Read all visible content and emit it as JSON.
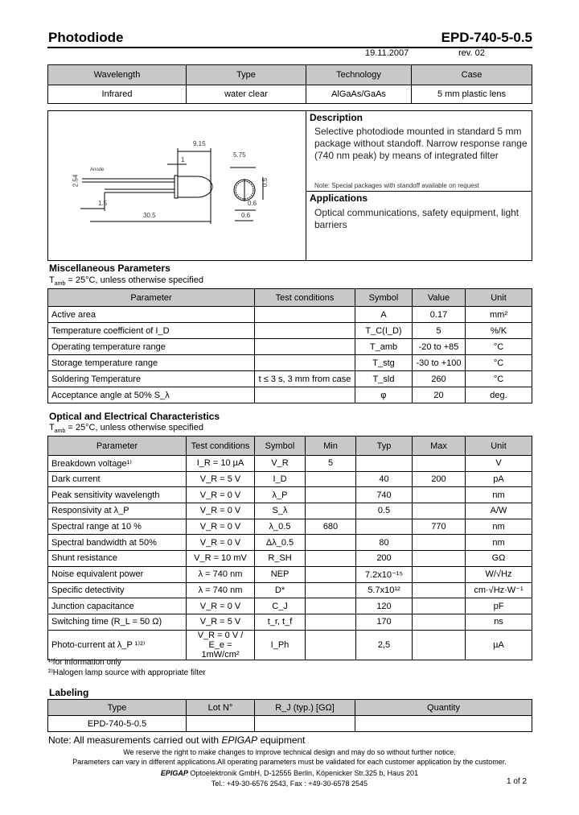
{
  "header": {
    "title": "Photodiode",
    "part": "EPD-740-5-0.5",
    "date": "19.11.2007",
    "rev": "rev. 02"
  },
  "summary": {
    "headers": [
      "Wavelength",
      "Type",
      "Technology",
      "Case"
    ],
    "values": [
      "Infrared",
      "water clear",
      "AlGaAs/GaAs",
      "5 mm plastic lens"
    ]
  },
  "drawing": {
    "labels": [
      "9.15",
      "1",
      "Anode",
      "5.75",
      "2.54",
      "0.5",
      "0.6",
      "0.6",
      "1.5",
      "30.5"
    ]
  },
  "description": {
    "heading": "Description",
    "text": "Selective photodiode mounted in standard 5 mm package without standoff. Narrow response range (740 nm peak) by means of integrated filter",
    "note": "Note: Special packages with standoff available on request"
  },
  "applications": {
    "heading": "Applications",
    "text": "Optical communications, safety equipment, light barriers"
  },
  "misc": {
    "heading": "Miscellaneous Parameters",
    "subtitle": "T_amb = 25°C, unless otherwise specified",
    "headers": [
      "Parameter",
      "Test conditions",
      "Symbol",
      "Value",
      "Unit"
    ],
    "rows": [
      [
        "Active area",
        "",
        "A",
        "0.17",
        "mm²"
      ],
      [
        "Temperature coefficient of I_D",
        "",
        "T_C(I_D)",
        "5",
        "%/K"
      ],
      [
        "Operating temperature range",
        "",
        "T_amb",
        "-20 to +85",
        "°C"
      ],
      [
        "Storage temperature range",
        "",
        "T_stg",
        "-30 to +100",
        "°C"
      ],
      [
        "Soldering Temperature",
        "t ≤ 3 s, 3 mm from case",
        "T_sld",
        "260",
        "°C"
      ],
      [
        "Acceptance angle at 50% S_λ",
        "",
        "φ",
        "20",
        "deg."
      ]
    ]
  },
  "optical": {
    "heading": "Optical and Electrical Characteristics",
    "subtitle": "T_amb = 25°C, unless otherwise specified",
    "headers": [
      "Parameter",
      "Test conditions",
      "Symbol",
      "Min",
      "Typ",
      "Max",
      "Unit"
    ],
    "rows": [
      [
        "Breakdown voltage¹⁾",
        "I_R = 10 µA",
        "V_R",
        "5",
        "",
        "",
        "V"
      ],
      [
        "Dark current",
        "V_R = 5 V",
        "I_D",
        "",
        "40",
        "200",
        "pA"
      ],
      [
        "Peak sensitivity wavelength",
        "V_R = 0 V",
        "λ_P",
        "",
        "740",
        "",
        "nm"
      ],
      [
        "Responsivity at λ_P",
        "V_R = 0 V",
        "S_λ",
        "",
        "0.5",
        "",
        "A/W"
      ],
      [
        "Spectral range at 10 %",
        "V_R = 0 V",
        "λ_0.5",
        "680",
        "",
        "770",
        "nm"
      ],
      [
        "Spectral bandwidth at 50%",
        "V_R = 0 V",
        "Δλ_0.5",
        "",
        "80",
        "",
        "nm"
      ],
      [
        "Shunt resistance",
        "V_R = 10 mV",
        "R_SH",
        "",
        "200",
        "",
        "GΩ"
      ],
      [
        "Noise equivalent power",
        "λ = 740 nm",
        "NEP",
        "",
        "7.2x10⁻¹⁵",
        "",
        "W/√Hz"
      ],
      [
        "Specific detectivity",
        "λ = 740 nm",
        "D*",
        "",
        "5.7x10¹²",
        "",
        "cm·√Hz·W⁻¹"
      ],
      [
        "Junction capacitance",
        "V_R = 0 V",
        "C_J",
        "",
        "120",
        "",
        "pF"
      ],
      [
        "Switching time (R_L = 50 Ω)",
        "V_R = 5 V",
        "t_r, t_f",
        "",
        "170",
        "",
        "ns"
      ],
      [
        "Photo-current at λ_P ¹⁾²⁾",
        "V_R = 0 V / E_e = 1mW/cm²",
        "I_Ph",
        "",
        "2,5",
        "",
        "µA"
      ]
    ],
    "footnotes": [
      "¹⁾for information only",
      "²⁾Halogen lamp source with appropriate filter"
    ]
  },
  "labeling": {
    "heading": "Labeling",
    "headers": [
      "Type",
      "Lot N°",
      "R_J (typ.) [GΩ]",
      "Quantity"
    ],
    "values": [
      "EPD-740-5-0.5",
      "",
      "",
      ""
    ]
  },
  "footer": {
    "note_prefix": "Note: All measurements carried out with ",
    "note_brand": "EPIGAP",
    "note_suffix": " equipment",
    "line1": "We reserve the right to make changes to improve technical design and may do so without further notice.",
    "line2": "Parameters can vary in different applications.All operating parameters must be validated for each customer application by the customer.",
    "company_brand": "EPIGAP",
    "company": " Optoelektronik GmbH, D-12555 Berlin, Köpenicker Str.325 b, Haus 201",
    "contact": "Tel.: +49-30-6576 2543, Fax : +49-30-6578 2545",
    "page": "1 of 2"
  }
}
